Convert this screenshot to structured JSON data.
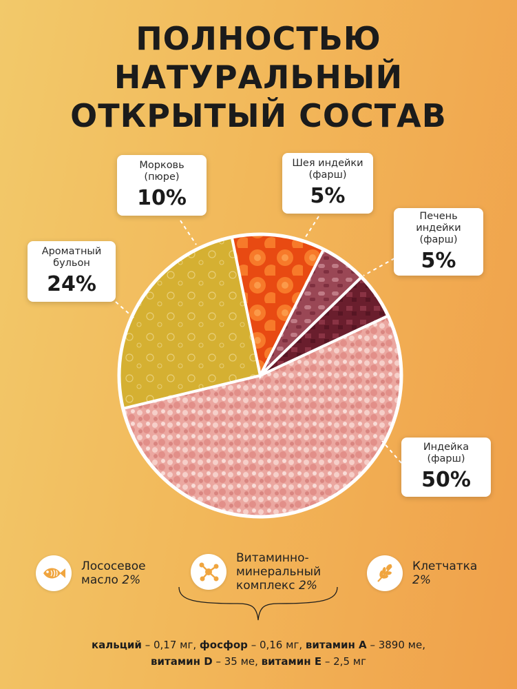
{
  "title": [
    "ПОЛНОСТЬЮ",
    "НАТУРАЛЬНЫЙ",
    "ОТКРЫТЫЙ СОСТАВ"
  ],
  "chart_data": {
    "type": "pie",
    "title": "",
    "slices": [
      {
        "label": "Индейка (фарш)",
        "value": 50,
        "display": "50%",
        "color": "#eaa9a2"
      },
      {
        "label": "Ароматный бульон",
        "value": 24,
        "display": "24%",
        "color": "#d6b233"
      },
      {
        "label": "Морковь (пюре)",
        "value": 10,
        "display": "10%",
        "color": "#f26b1d"
      },
      {
        "label": "Шея индейки (фарш)",
        "value": 5,
        "display": "5%",
        "color": "#9d4a58"
      },
      {
        "label": "Печень индейки (фарш)",
        "value": 5,
        "display": "5%",
        "color": "#6b1f2e"
      }
    ]
  },
  "cards": {
    "turkey": {
      "label": [
        "Индейка",
        "(фарш)"
      ],
      "pct": "50%"
    },
    "broth": {
      "label": [
        "Ароматный",
        "бульон"
      ],
      "pct": "24%"
    },
    "carrot": {
      "label": [
        "Морковь",
        "(пюре)"
      ],
      "pct": "10%"
    },
    "neck": {
      "label": [
        "Шея индейки",
        "(фарш)"
      ],
      "pct": "5%"
    },
    "liver": {
      "label": [
        "Печень",
        "индейки",
        "(фарш)"
      ],
      "pct": "5%"
    }
  },
  "extras": {
    "salmon": {
      "label": [
        "Лососевое",
        "масло"
      ],
      "pct": "2%",
      "icon": "fish-icon"
    },
    "vitamin": {
      "label": [
        "Витаминно-",
        "минеральный",
        "комплекс"
      ],
      "pct": "2%",
      "icon": "molecule-icon"
    },
    "fiber": {
      "label": [
        "Клетчатка"
      ],
      "pct": "2%",
      "icon": "wheat-icon"
    }
  },
  "nutrients": [
    {
      "name": "кальций",
      "value": "– 0,17 мг,"
    },
    {
      "name": "фосфор",
      "value": "– 0,16 мг,"
    },
    {
      "name": "витамин A",
      "value": "– 3890 ме,"
    },
    {
      "name": "витамин D",
      "value": "– 35 ме,"
    },
    {
      "name": "витамин E",
      "value": "– 2,5 мг"
    }
  ],
  "colors": {
    "accent": "#f0a04a",
    "badge_icon": "#f0a53f"
  }
}
